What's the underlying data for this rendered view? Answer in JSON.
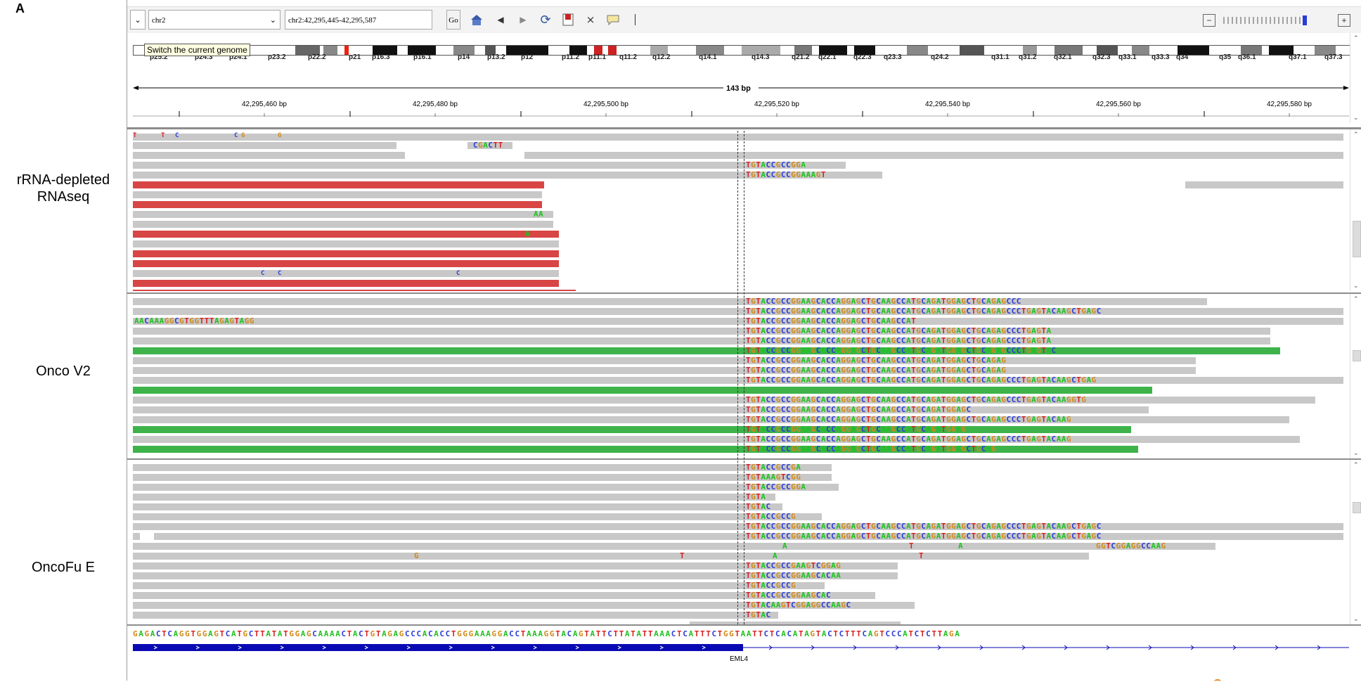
{
  "figure_letter": "A",
  "panels": [
    {
      "label": "rRNA-depleted\nRNAseq"
    },
    {
      "label": "Onco V2"
    },
    {
      "label": "OncoFu E"
    }
  ],
  "toolbar": {
    "genome_selector": "",
    "chromosome": "chr2",
    "locus": "chr2:42,295,445-42,295,587",
    "go_label": "Go",
    "tooltip": "Switch the current genome"
  },
  "ideogram_bands": [
    "p25.2",
    "p24.3",
    "p24.1",
    "p23.2",
    "p22.2",
    "p21",
    "p16.3",
    "p16.1",
    "p14",
    "p13.2",
    "p12",
    "p11.2",
    "p11.1",
    "q11.2",
    "q12.2",
    "q14.1",
    "q14.3",
    "q21.2",
    "q22.1",
    "q22.3",
    "q23.3",
    "q24.2",
    "q31.1",
    "q31.2",
    "q32.1",
    "q32.3",
    "q33.1",
    "q33.3",
    "q34",
    "q35",
    "q36.1",
    "q37.1",
    "q37.3"
  ],
  "ruler": {
    "span": "143 bp",
    "ticks": [
      "42,295,460 bp",
      "42,295,480 bp",
      "42,295,500 bp",
      "42,295,520 bp",
      "42,295,540 bp",
      "42,295,560 bp",
      "42,295,580 bp"
    ]
  },
  "track1": {
    "top_mismatches": [
      "T",
      "T",
      "C",
      "C",
      "G",
      "G"
    ],
    "soft_clip_a": "CGACTT",
    "clip_rows": [
      "TGTACCGCCGGA",
      "TGTACCGCCGGAAAGT"
    ],
    "small_a": [
      "AA",
      "A"
    ],
    "small_c": [
      "C",
      "C",
      "C"
    ]
  },
  "track2": {
    "left_seq": "AACAAAGGCGTGGTTTAGAGTAGG",
    "rows": [
      "TGTACCGCCGGAAGCACCAGGAGCTGCAAGCCATGCAGATGGAGCTGCAGAGCCC",
      "TGTACCGCCGGAAGCACCAGGAGCTGCAAGCCATGCAGATGGAGCTGCAGAGCCCTGAGTACAAGCTGAGC",
      "TGTACCGCCGGAAGCACCAGGAGCTGCAAGCCAT",
      "TGTACCGCCGGAAGCACCAGGAGCTGCAAGCCATGCAGATGGAGCTGCAGAGCCCTGAGTA",
      "TGTACCGCCGGAAGCACCAGGAGCTGCAAGCCATGCAGATGGAGCTGCAGAGCCCTGAGTA",
      "TGTACCGCCGGAAGCACCAGGAGCTGCAAGCCATGCAGATGGAGCTGCAGAGCCCTGAGTAC",
      "TGTACCGCCGGAAGCACCAGGAGCTGCAAGCCATGCAGATGGAGCTGCAGAG",
      "TGTACCGCCGGAAGCACCAGGAGCTGCAAGCCATGCAGATGGAGCTGCAGAG",
      "TGTACCGCCGGAAGCACCAGGAGCTGCAAGCCATGCAGATGGAGCTGCAGAGCCCTGAGTACAAGCTGAG",
      "TGTACCGCCGGAAGCACCAGGAGCTGCAAGCCATGCAGATGGAGC",
      "TGTACCGCCGGAAGCACCAGGAGCTGCAAGCCATGCAGATGGAGCTGCAGAGCCCTGAGTACAAGGTG",
      "TGTACCGCCGGAAGCACCAGGAGCTGCAAGCCATGCAGATGGAGC",
      "TGTACCGCCGGAAGCACCAGGAGCTGCAAGCCATGCAGATGGAGCTGCAGAGCCCTGAGTACAAG",
      "TGTACCGCCGGAAGCACCAGGAGCTGCAAGCCATGCAGATGGAG",
      "TGTACCGCCGGAAGCACCAGGAGCTGCAAGCCATGCAGATGGAGCTGCAGAGCCCTGAGTACAAG",
      "TGTACCGCCGGAAGCACCAGGAGCTGCAAGCCATGCAGATGGAGCTGCAG"
    ]
  },
  "track3": {
    "rows": [
      "TGTACCGCCGA",
      "TGTAAAGTCGG",
      "TGTACCGCCGGA",
      "TGTA",
      "TGTAC",
      "TGTACCGCCG",
      "TGTACCGCCGGAAGCACCAGGAGCTGCAAGCCATGCAGATGGAGCTGCAGAGCCCTGAGTACAAGCTGAGC",
      "TGTACCGCCGGAAGCACCAGGAGCTGCAAGCCATGCAGATGGAGCTGCAGAGCCCTGAGTACAAGCTGAGC",
      "A",
      "A",
      "TGTACCGCCGAAGTCGGAG",
      "TGTACCGCCGGAAGCACAA",
      "TGTACCGCCG",
      "TGTACCGCCGGAAGCAC",
      "TGTACAAGTCGGAGGCCAAGC",
      "TGTAC"
    ],
    "right_clip": "GGTCGGAGGCCAAG",
    "mismatch_g": "G",
    "mismatch_t": [
      "T",
      "T",
      "T"
    ],
    "mismatch_a": "A"
  },
  "reference_sequence": "GAGACTCAGGTGGAGTCATGCTTATATGGAGCAAAACTACTGTAGAGCCCACACCTGGGAAAGGACCTAAAGGTACAGTATTCTTATATTAAACTCATTTCTGGTAATTCTCACATAGTACTCTTTCAGTCCCATCTCTTAGA",
  "gene": {
    "name": "EML4"
  },
  "colors": {
    "A": "#1ec21e",
    "C": "#2a3bd8",
    "G": "#d08a1a",
    "T": "#d82020",
    "read": "#c8c8c8",
    "red_read": "#d84545",
    "green_read": "#3db34a",
    "gene": "#0a0ab4"
  }
}
